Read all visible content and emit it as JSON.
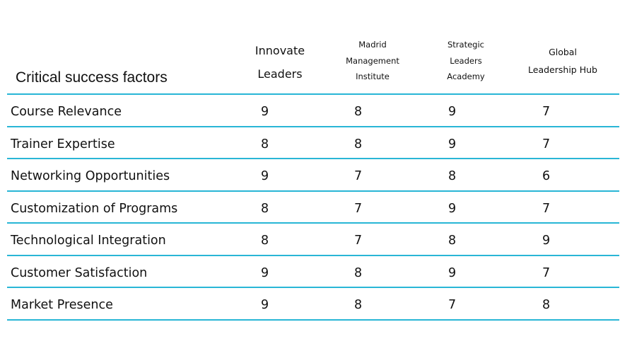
{
  "chart_data": {
    "type": "table",
    "title": "Critical success factors",
    "columns": [
      [
        "Innovate",
        "Leaders"
      ],
      [
        "Madrid",
        "Management",
        "Institute"
      ],
      [
        "Strategic",
        "Leaders",
        "Academy"
      ],
      [
        "Global",
        "Leadership Hub"
      ]
    ],
    "rows": [
      {
        "label": "Course Relevance",
        "values": [
          "9",
          "8",
          "9",
          "7"
        ]
      },
      {
        "label": "Trainer Expertise",
        "values": [
          "8",
          "8",
          "9",
          "7"
        ]
      },
      {
        "label": "Networking Opportunities",
        "values": [
          "9",
          "7",
          "8",
          "6"
        ]
      },
      {
        "label": "Customization of Programs",
        "values": [
          "8",
          "7",
          "9",
          "7"
        ]
      },
      {
        "label": "Technological Integration",
        "values": [
          "8",
          "7",
          "8",
          "9"
        ]
      },
      {
        "label": "Customer Satisfaction",
        "values": [
          "9",
          "8",
          "9",
          "7"
        ]
      },
      {
        "label": "Market Presence",
        "values": [
          "9",
          "8",
          "7",
          "8"
        ]
      }
    ],
    "rule_color": "#29b6d6"
  }
}
